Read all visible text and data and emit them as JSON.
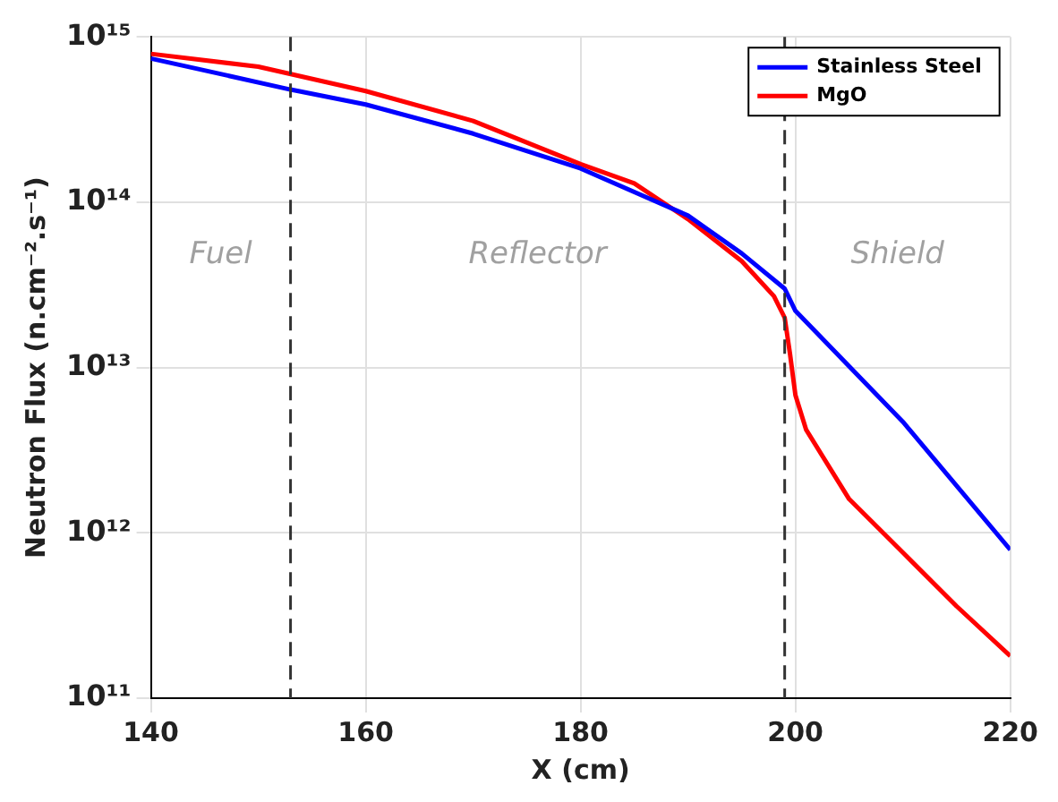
{
  "chart_data": {
    "type": "line",
    "xlabel": "X (cm)",
    "ylabel": "Neutron Flux (n.cm⁻².s⁻¹)",
    "log": "y",
    "grid": true,
    "legend": "top right",
    "marker": "none",
    "line_style": "solid",
    "xlim": [
      140,
      220
    ],
    "xticks": [
      140,
      160,
      180,
      200,
      220
    ],
    "ylim": [
      100000000000.0,
      1000000000000000.0
    ],
    "yticks": [
      {
        "value": 100000000000.0,
        "label": "10¹¹"
      },
      {
        "value": 1000000000000.0,
        "label": "10¹²"
      },
      {
        "value": 10000000000000.0,
        "label": "10¹³"
      },
      {
        "value": 100000000000000.0,
        "label": "10¹⁴"
      },
      {
        "value": 1000000000000000.0,
        "label": "10¹⁵"
      }
    ],
    "series": [
      {
        "name": "Stainless Steel",
        "color": "#0000ff",
        "x": [
          140,
          153,
          160,
          170,
          180,
          190,
          195,
          199,
          200,
          210,
          220
        ],
        "values": [
          740000000000000.0,
          480000000000000.0,
          390000000000000.0,
          260000000000000.0,
          160000000000000.0,
          83000000000000.0,
          49000000000000.0,
          30000000000000.0,
          22000000000000.0,
          4700000000000.0,
          790000000000.0
        ]
      },
      {
        "name": "MgO",
        "color": "#ff0000",
        "x": [
          140,
          150,
          160,
          170,
          180,
          185,
          190,
          195,
          198,
          199,
          199.5,
          200,
          201,
          205,
          210,
          215,
          220
        ],
        "values": [
          790000000000000.0,
          660000000000000.0,
          470000000000000.0,
          310000000000000.0,
          170000000000000.0,
          130000000000000.0,
          79000000000000.0,
          44000000000000.0,
          27000000000000.0,
          20000000000000.0,
          12000000000000.0,
          6800000000000.0,
          4200000000000.0,
          1600000000000.0,
          760000000000.0,
          360000000000.0,
          180000000000.0
        ]
      }
    ],
    "ref_lines": [
      {
        "axis": "x",
        "value": 153,
        "color": "#333333",
        "line_style": "dashed"
      },
      {
        "axis": "x",
        "value": 199,
        "color": "#333333",
        "line_style": "dashed"
      }
    ],
    "annotations": [
      "Fuel",
      "Reflector",
      "Shield"
    ]
  }
}
